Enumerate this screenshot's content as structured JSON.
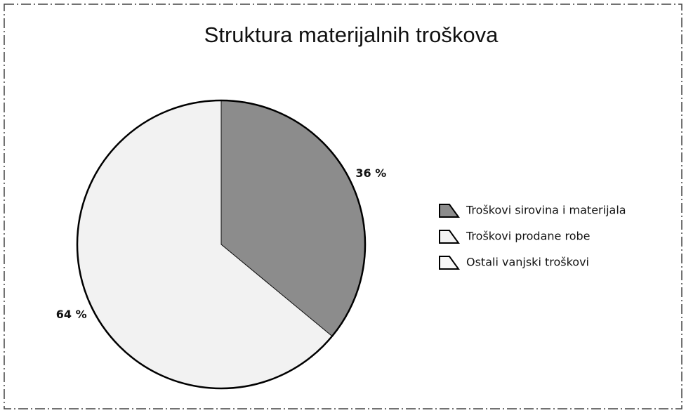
{
  "chart_data": {
    "type": "pie",
    "title": "Struktura materijalnih troškova",
    "categories": [
      "Troškovi sirovina i materijala",
      "Troškovi prodane robe",
      "Ostali vanjski troškovi"
    ],
    "values": [
      36,
      64,
      0
    ],
    "value_labels": [
      "36 %",
      "64 %",
      null
    ],
    "colors": [
      "#8c8c8c",
      "#f2f2f2",
      "#f7f7f7"
    ],
    "legend": "right"
  }
}
